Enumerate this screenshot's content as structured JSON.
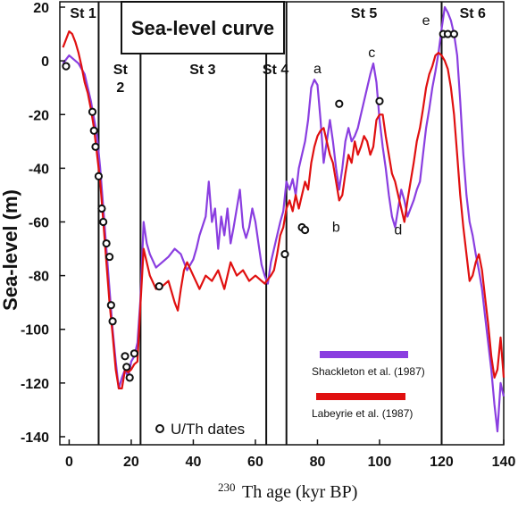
{
  "chart_data": {
    "type": "line",
    "title": "Sea-level curve",
    "xlabel_sup": "230",
    "xlabel": "Th age (kyr BP)",
    "ylabel": "Sea-level (m)",
    "xlim": [
      -3,
      140
    ],
    "ylim": [
      -143,
      22
    ],
    "x_ticks": [
      0,
      20,
      40,
      60,
      80,
      100,
      120,
      140
    ],
    "y_ticks": [
      20,
      0,
      -20,
      -40,
      -60,
      -80,
      -100,
      -120,
      -140
    ],
    "stage_boundaries": [
      9.5,
      23,
      63.5,
      70,
      120
    ],
    "stages": [
      {
        "label": "St 1",
        "x": 4.5,
        "y": 18,
        "y2": null
      },
      {
        "label": "St",
        "x": 16.5,
        "y": -3,
        "y2": "2"
      },
      {
        "label": "St 3",
        "x": 43,
        "y": -3,
        "y2": null
      },
      {
        "label": "St 4",
        "x": 66.5,
        "y": -3,
        "y2": null
      },
      {
        "label": "St 5",
        "x": 95,
        "y": 18,
        "y2": null
      },
      {
        "label": "St 6",
        "x": 130,
        "y": 18,
        "y2": null
      }
    ],
    "peak_labels": [
      {
        "label": "a",
        "x": 80,
        "y": -3
      },
      {
        "label": "b",
        "x": 86,
        "y": -62
      },
      {
        "label": "c",
        "x": 97.5,
        "y": 3
      },
      {
        "label": "d",
        "x": 106,
        "y": -63
      },
      {
        "label": "e",
        "x": 115,
        "y": 15
      }
    ],
    "series": [
      {
        "name": "Shackleton et al. (1987)",
        "color": "#8a3ee0",
        "points": [
          [
            -2,
            -1
          ],
          [
            0,
            2
          ],
          [
            1,
            1
          ],
          [
            3,
            -1
          ],
          [
            5,
            -5
          ],
          [
            7,
            -15
          ],
          [
            9,
            -28
          ],
          [
            10,
            -40
          ],
          [
            11,
            -55
          ],
          [
            12,
            -70
          ],
          [
            13,
            -85
          ],
          [
            14,
            -100
          ],
          [
            15,
            -112
          ],
          [
            16,
            -122
          ],
          [
            17,
            -118
          ],
          [
            18,
            -115
          ],
          [
            19,
            -118
          ],
          [
            20,
            -112
          ],
          [
            21,
            -110
          ],
          [
            22,
            -105
          ],
          [
            23,
            -88
          ],
          [
            24,
            -60
          ],
          [
            25,
            -68
          ],
          [
            26,
            -72
          ],
          [
            28,
            -77
          ],
          [
            30,
            -75
          ],
          [
            32,
            -73
          ],
          [
            34,
            -70
          ],
          [
            36,
            -72
          ],
          [
            38,
            -78
          ],
          [
            40,
            -74
          ],
          [
            41,
            -70
          ],
          [
            42,
            -65
          ],
          [
            44,
            -58
          ],
          [
            45,
            -45
          ],
          [
            46,
            -60
          ],
          [
            47,
            -55
          ],
          [
            48,
            -70
          ],
          [
            49,
            -58
          ],
          [
            50,
            -65
          ],
          [
            51,
            -55
          ],
          [
            52,
            -68
          ],
          [
            53,
            -62
          ],
          [
            54,
            -55
          ],
          [
            55,
            -48
          ],
          [
            56,
            -62
          ],
          [
            57,
            -66
          ],
          [
            58,
            -62
          ],
          [
            59,
            -55
          ],
          [
            60,
            -60
          ],
          [
            61,
            -68
          ],
          [
            62,
            -76
          ],
          [
            63,
            -80
          ],
          [
            64,
            -83
          ],
          [
            65,
            -75
          ],
          [
            66,
            -70
          ],
          [
            67,
            -65
          ],
          [
            68,
            -60
          ],
          [
            69,
            -56
          ],
          [
            70,
            -45
          ],
          [
            71,
            -48
          ],
          [
            72,
            -44
          ],
          [
            73,
            -50
          ],
          [
            74,
            -40
          ],
          [
            75,
            -35
          ],
          [
            76,
            -30
          ],
          [
            77,
            -22
          ],
          [
            78,
            -10
          ],
          [
            79,
            -7
          ],
          [
            80,
            -9
          ],
          [
            81,
            -22
          ],
          [
            82,
            -38
          ],
          [
            83,
            -30
          ],
          [
            84,
            -22
          ],
          [
            85,
            -30
          ],
          [
            86,
            -40
          ],
          [
            87,
            -48
          ],
          [
            88,
            -40
          ],
          [
            89,
            -30
          ],
          [
            90,
            -25
          ],
          [
            91,
            -30
          ],
          [
            92,
            -28
          ],
          [
            93,
            -25
          ],
          [
            94,
            -20
          ],
          [
            95,
            -15
          ],
          [
            96,
            -10
          ],
          [
            97,
            -5
          ],
          [
            98,
            -1
          ],
          [
            99,
            -8
          ],
          [
            100,
            -22
          ],
          [
            101,
            -32
          ],
          [
            102,
            -40
          ],
          [
            103,
            -50
          ],
          [
            104,
            -58
          ],
          [
            105,
            -62
          ],
          [
            106,
            -55
          ],
          [
            107,
            -48
          ],
          [
            108,
            -52
          ],
          [
            109,
            -58
          ],
          [
            110,
            -55
          ],
          [
            111,
            -52
          ],
          [
            112,
            -48
          ],
          [
            113,
            -45
          ],
          [
            114,
            -35
          ],
          [
            115,
            -25
          ],
          [
            116,
            -18
          ],
          [
            117,
            -10
          ],
          [
            118,
            -4
          ],
          [
            119,
            3
          ],
          [
            120,
            12
          ],
          [
            121,
            20
          ],
          [
            122,
            18
          ],
          [
            123,
            15
          ],
          [
            124,
            10
          ],
          [
            125,
            2
          ],
          [
            126,
            -15
          ],
          [
            127,
            -35
          ],
          [
            128,
            -50
          ],
          [
            129,
            -60
          ],
          [
            130,
            -65
          ],
          [
            131,
            -72
          ],
          [
            132,
            -78
          ],
          [
            133,
            -85
          ],
          [
            134,
            -95
          ],
          [
            135,
            -105
          ],
          [
            136,
            -115
          ],
          [
            137,
            -128
          ],
          [
            138,
            -138
          ],
          [
            139,
            -120
          ],
          [
            140,
            -125
          ]
        ]
      },
      {
        "name": "Labeyrie et al. (1987)",
        "color": "#e01010",
        "points": [
          [
            -2,
            5
          ],
          [
            0,
            11
          ],
          [
            1,
            10
          ],
          [
            2,
            7
          ],
          [
            3,
            3
          ],
          [
            4,
            -2
          ],
          [
            5,
            -8
          ],
          [
            6,
            -12
          ],
          [
            7,
            -18
          ],
          [
            8,
            -25
          ],
          [
            9,
            -35
          ],
          [
            10,
            -45
          ],
          [
            11,
            -60
          ],
          [
            12,
            -75
          ],
          [
            13,
            -90
          ],
          [
            14,
            -102
          ],
          [
            15,
            -115
          ],
          [
            16,
            -122
          ],
          [
            17,
            -122
          ],
          [
            18,
            -115
          ],
          [
            19,
            -116
          ],
          [
            20,
            -115
          ],
          [
            21,
            -113
          ],
          [
            22,
            -112
          ],
          [
            23,
            -90
          ],
          [
            24,
            -70
          ],
          [
            25,
            -75
          ],
          [
            26,
            -80
          ],
          [
            28,
            -85
          ],
          [
            30,
            -84
          ],
          [
            32,
            -82
          ],
          [
            34,
            -90
          ],
          [
            35,
            -93
          ],
          [
            36,
            -85
          ],
          [
            37,
            -78
          ],
          [
            38,
            -75
          ],
          [
            40,
            -80
          ],
          [
            42,
            -85
          ],
          [
            44,
            -80
          ],
          [
            46,
            -82
          ],
          [
            48,
            -78
          ],
          [
            50,
            -85
          ],
          [
            52,
            -75
          ],
          [
            54,
            -80
          ],
          [
            56,
            -78
          ],
          [
            58,
            -82
          ],
          [
            60,
            -80
          ],
          [
            62,
            -82
          ],
          [
            63,
            -83
          ],
          [
            65,
            -80
          ],
          [
            66,
            -78
          ],
          [
            67,
            -72
          ],
          [
            68,
            -65
          ],
          [
            69,
            -62
          ],
          [
            70,
            -55
          ],
          [
            71,
            -52
          ],
          [
            72,
            -56
          ],
          [
            73,
            -50
          ],
          [
            74,
            -55
          ],
          [
            75,
            -50
          ],
          [
            76,
            -45
          ],
          [
            77,
            -48
          ],
          [
            78,
            -38
          ],
          [
            79,
            -32
          ],
          [
            80,
            -28
          ],
          [
            81,
            -26
          ],
          [
            82,
            -25
          ],
          [
            83,
            -30
          ],
          [
            84,
            -35
          ],
          [
            85,
            -38
          ],
          [
            86,
            -45
          ],
          [
            87,
            -52
          ],
          [
            88,
            -50
          ],
          [
            89,
            -42
          ],
          [
            90,
            -35
          ],
          [
            91,
            -38
          ],
          [
            92,
            -30
          ],
          [
            93,
            -35
          ],
          [
            94,
            -32
          ],
          [
            95,
            -28
          ],
          [
            96,
            -30
          ],
          [
            97,
            -35
          ],
          [
            98,
            -32
          ],
          [
            99,
            -22
          ],
          [
            100,
            -20
          ],
          [
            101,
            -20
          ],
          [
            102,
            -28
          ],
          [
            103,
            -35
          ],
          [
            104,
            -42
          ],
          [
            105,
            -45
          ],
          [
            106,
            -50
          ],
          [
            107,
            -55
          ],
          [
            108,
            -60
          ],
          [
            109,
            -52
          ],
          [
            110,
            -45
          ],
          [
            111,
            -38
          ],
          [
            112,
            -30
          ],
          [
            113,
            -25
          ],
          [
            114,
            -18
          ],
          [
            115,
            -10
          ],
          [
            116,
            -5
          ],
          [
            117,
            -2
          ],
          [
            118,
            2
          ],
          [
            119,
            3
          ],
          [
            120,
            2
          ],
          [
            121,
            0
          ],
          [
            122,
            -3
          ],
          [
            123,
            -10
          ],
          [
            124,
            -20
          ],
          [
            125,
            -35
          ],
          [
            126,
            -50
          ],
          [
            127,
            -62
          ],
          [
            128,
            -72
          ],
          [
            129,
            -82
          ],
          [
            130,
            -80
          ],
          [
            131,
            -75
          ],
          [
            132,
            -72
          ],
          [
            133,
            -78
          ],
          [
            134,
            -88
          ],
          [
            135,
            -98
          ],
          [
            136,
            -110
          ],
          [
            137,
            -118
          ],
          [
            138,
            -115
          ],
          [
            139,
            -103
          ],
          [
            140,
            -118
          ]
        ]
      }
    ],
    "uth_dates": [
      [
        -1,
        -2
      ],
      [
        7.5,
        -19
      ],
      [
        8,
        -26
      ],
      [
        8.5,
        -32
      ],
      [
        9.5,
        -43
      ],
      [
        10.5,
        -55
      ],
      [
        11,
        -60
      ],
      [
        12,
        -68
      ],
      [
        13,
        -73
      ],
      [
        13.5,
        -91
      ],
      [
        14,
        -97
      ],
      [
        18,
        -110
      ],
      [
        18.5,
        -114
      ],
      [
        19.5,
        -118
      ],
      [
        21,
        -109
      ],
      [
        29,
        -84
      ],
      [
        69.5,
        -72
      ],
      [
        75,
        -62
      ],
      [
        76,
        -63
      ],
      [
        87,
        -16
      ],
      [
        100,
        -15
      ],
      [
        120.5,
        10
      ],
      [
        122,
        10
      ],
      [
        124,
        10
      ]
    ],
    "legend": {
      "uth_label": "U/Th dates",
      "entries": [
        {
          "label": "Shackleton et al. (1987)",
          "color": "#8a3ee0"
        },
        {
          "label": "Labeyrie et al. (1987)",
          "color": "#e01010"
        }
      ]
    }
  }
}
